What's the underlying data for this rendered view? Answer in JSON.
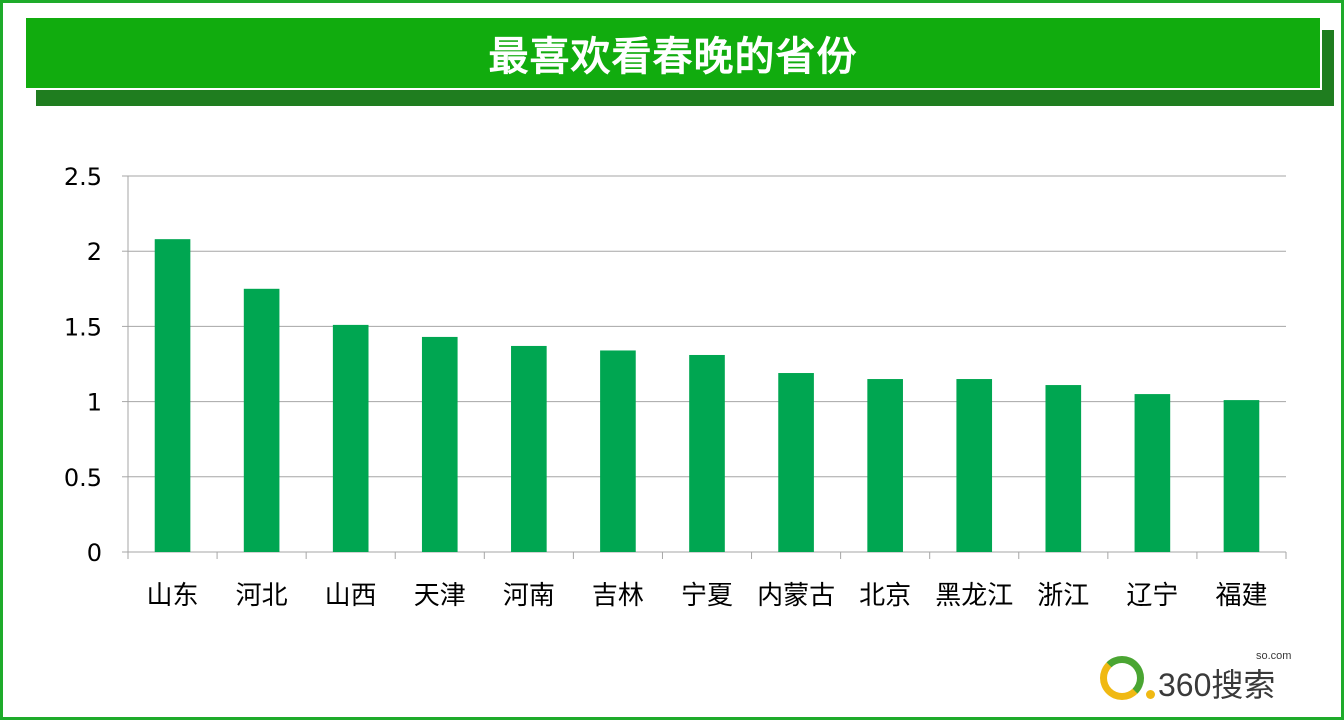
{
  "chart_data": {
    "type": "bar",
    "title": "最喜欢看春晚的省份",
    "categories": [
      "山东",
      "河北",
      "山西",
      "天津",
      "河南",
      "吉林",
      "宁夏",
      "内蒙古",
      "北京",
      "黑龙江",
      "浙江",
      "辽宁",
      "福建"
    ],
    "values": [
      2.08,
      1.75,
      1.51,
      1.43,
      1.37,
      1.34,
      1.31,
      1.19,
      1.15,
      1.15,
      1.11,
      1.05,
      1.01
    ],
    "xlabel": "",
    "ylabel": "",
    "ylim": [
      0,
      2.5
    ],
    "yticks": [
      "0",
      "0.5",
      "1",
      "1.5",
      "2",
      "2.5"
    ],
    "ytick_values": [
      0,
      0.5,
      1,
      1.5,
      2,
      2.5
    ],
    "grid": true,
    "legend": "none",
    "bar_color": "#00a651"
  },
  "branding": {
    "logo_text": "360搜索",
    "logo_domain": "so.com"
  },
  "colors": {
    "banner": "#11ac0e",
    "banner_shadow": "#1f7d1f",
    "frame": "#1eab2a",
    "grid": "#a6a6a6"
  }
}
